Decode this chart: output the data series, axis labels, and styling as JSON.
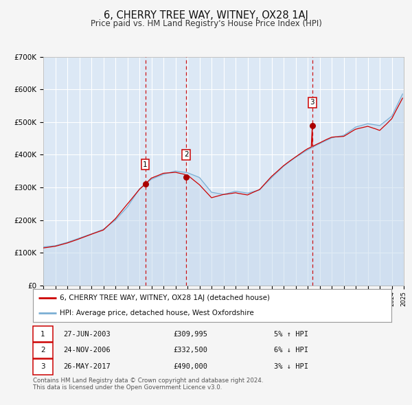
{
  "title": "6, CHERRY TREE WAY, WITNEY, OX28 1AJ",
  "subtitle": "Price paid vs. HM Land Registry's House Price Index (HPI)",
  "title_fontsize": 10.5,
  "subtitle_fontsize": 8.5,
  "background_color": "#f5f5f5",
  "plot_bg_color": "#dce8f5",
  "grid_color": "#ffffff",
  "ylim": [
    0,
    700000
  ],
  "yticks": [
    0,
    100000,
    200000,
    300000,
    400000,
    500000,
    600000,
    700000
  ],
  "ytick_labels": [
    "£0",
    "£100K",
    "£200K",
    "£300K",
    "£400K",
    "£500K",
    "£600K",
    "£700K"
  ],
  "year_start": 1995,
  "year_end": 2025,
  "hpi_color": "#7bafd4",
  "hpi_fill_color": "#c5d8ed",
  "price_color": "#cc0000",
  "sale_marker_color": "#aa0000",
  "vline_color": "#cc0000",
  "sale_dates_year": [
    2003.49,
    2006.9,
    2017.39
  ],
  "sale_prices": [
    309995,
    332500,
    490000
  ],
  "sale_labels": [
    "1",
    "2",
    "3"
  ],
  "legend_price_label": "6, CHERRY TREE WAY, WITNEY, OX28 1AJ (detached house)",
  "legend_hpi_label": "HPI: Average price, detached house, West Oxfordshire",
  "table_rows": [
    {
      "num": "1",
      "date": "27-JUN-2003",
      "price": "£309,995",
      "hpi": "5% ↑ HPI"
    },
    {
      "num": "2",
      "date": "24-NOV-2006",
      "price": "£332,500",
      "hpi": "6% ↓ HPI"
    },
    {
      "num": "3",
      "date": "26-MAY-2017",
      "price": "£490,000",
      "hpi": "3% ↓ HPI"
    }
  ],
  "footnote": "Contains HM Land Registry data © Crown copyright and database right 2024.\nThis data is licensed under the Open Government Licence v3.0.",
  "hpi_data_years": [
    1995.0,
    1995.1,
    1995.2,
    1995.3,
    1995.4,
    1995.5,
    1995.6,
    1995.7,
    1995.8,
    1995.9,
    1996.0,
    1996.1,
    1996.2,
    1996.3,
    1996.4,
    1996.5,
    1996.6,
    1996.7,
    1996.8,
    1996.9,
    1997.0,
    1997.1,
    1997.2,
    1997.3,
    1997.4,
    1997.5,
    1997.6,
    1997.7,
    1997.8,
    1997.9,
    1998.0,
    1998.1,
    1998.2,
    1998.3,
    1998.4,
    1998.5,
    1998.6,
    1998.7,
    1998.8,
    1998.9,
    1999.0,
    1999.1,
    1999.2,
    1999.3,
    1999.4,
    1999.5,
    1999.6,
    1999.7,
    1999.8,
    1999.9,
    2000.0,
    2000.1,
    2000.2,
    2000.3,
    2000.4,
    2000.5,
    2000.6,
    2000.7,
    2000.8,
    2000.9,
    2001.0,
    2001.1,
    2001.2,
    2001.3,
    2001.4,
    2001.5,
    2001.6,
    2001.7,
    2001.8,
    2001.9,
    2002.0,
    2002.1,
    2002.2,
    2002.3,
    2002.4,
    2002.5,
    2002.6,
    2002.7,
    2002.8,
    2002.9,
    2003.0,
    2003.1,
    2003.2,
    2003.3,
    2003.4,
    2003.5,
    2003.6,
    2003.7,
    2003.8,
    2003.9,
    2004.0,
    2004.1,
    2004.2,
    2004.3,
    2004.4,
    2004.5,
    2004.6,
    2004.7,
    2004.8,
    2004.9,
    2005.0,
    2005.1,
    2005.2,
    2005.3,
    2005.4,
    2005.5,
    2005.6,
    2005.7,
    2005.8,
    2005.9,
    2006.0,
    2006.1,
    2006.2,
    2006.3,
    2006.4,
    2006.5,
    2006.6,
    2006.7,
    2006.8,
    2006.9,
    2007.0,
    2007.1,
    2007.2,
    2007.3,
    2007.4,
    2007.5,
    2007.6,
    2007.7,
    2007.8,
    2007.9,
    2008.0,
    2008.1,
    2008.2,
    2008.3,
    2008.4,
    2008.5,
    2008.6,
    2008.7,
    2008.8,
    2008.9,
    2009.0,
    2009.1,
    2009.2,
    2009.3,
    2009.4,
    2009.5,
    2009.6,
    2009.7,
    2009.8,
    2009.9,
    2010.0,
    2010.1,
    2010.2,
    2010.3,
    2010.4,
    2010.5,
    2010.6,
    2010.7,
    2010.8,
    2010.9,
    2011.0,
    2011.1,
    2011.2,
    2011.3,
    2011.4,
    2011.5,
    2011.6,
    2011.7,
    2011.8,
    2011.9,
    2012.0,
    2012.1,
    2012.2,
    2012.3,
    2012.4,
    2012.5,
    2012.6,
    2012.7,
    2012.8,
    2012.9,
    2013.0,
    2013.1,
    2013.2,
    2013.3,
    2013.4,
    2013.5,
    2013.6,
    2013.7,
    2013.8,
    2013.9,
    2014.0,
    2014.1,
    2014.2,
    2014.3,
    2014.4,
    2014.5,
    2014.6,
    2014.7,
    2014.8,
    2014.9,
    2015.0,
    2015.1,
    2015.2,
    2015.3,
    2015.4,
    2015.5,
    2015.6,
    2015.7,
    2015.8,
    2015.9,
    2016.0,
    2016.1,
    2016.2,
    2016.3,
    2016.4,
    2016.5,
    2016.6,
    2016.7,
    2016.8,
    2016.9,
    2017.0,
    2017.1,
    2017.2,
    2017.3,
    2017.4,
    2017.5,
    2017.6,
    2017.7,
    2017.8,
    2017.9,
    2018.0,
    2018.1,
    2018.2,
    2018.3,
    2018.4,
    2018.5,
    2018.6,
    2018.7,
    2018.8,
    2018.9,
    2019.0,
    2019.1,
    2019.2,
    2019.3,
    2019.4,
    2019.5,
    2019.6,
    2019.7,
    2019.8,
    2019.9,
    2020.0,
    2020.1,
    2020.2,
    2020.3,
    2020.4,
    2020.5,
    2020.6,
    2020.7,
    2020.8,
    2020.9,
    2021.0,
    2021.1,
    2021.2,
    2021.3,
    2021.4,
    2021.5,
    2021.6,
    2021.7,
    2021.8,
    2021.9,
    2022.0,
    2022.1,
    2022.2,
    2022.3,
    2022.4,
    2022.5,
    2022.6,
    2022.7,
    2022.8,
    2022.9,
    2023.0,
    2023.1,
    2023.2,
    2023.3,
    2023.4,
    2023.5,
    2023.6,
    2023.7,
    2023.8,
    2023.9,
    2024.0,
    2024.1,
    2024.2,
    2024.3,
    2024.4,
    2024.5,
    2024.6,
    2024.7,
    2024.8,
    2024.9
  ],
  "price_data_years": [
    1995.0,
    1995.1,
    1995.2,
    1995.3,
    1995.4,
    1995.5,
    1995.6,
    1995.7,
    1995.8,
    1995.9,
    1996.0,
    1996.1,
    1996.2,
    1996.3,
    1996.4,
    1996.5,
    1996.6,
    1996.7,
    1996.8,
    1996.9,
    1997.0,
    1997.1,
    1997.2,
    1997.3,
    1997.4,
    1997.5,
    1997.6,
    1997.7,
    1997.8,
    1997.9,
    1998.0,
    1998.1,
    1998.2,
    1998.3,
    1998.4,
    1998.5,
    1998.6,
    1998.7,
    1998.8,
    1998.9,
    1999.0,
    1999.1,
    1999.2,
    1999.3,
    1999.4,
    1999.5,
    1999.6,
    1999.7,
    1999.8,
    1999.9,
    2000.0,
    2000.1,
    2000.2,
    2000.3,
    2000.4,
    2000.5,
    2000.6,
    2000.7,
    2000.8,
    2000.9,
    2001.0,
    2001.1,
    2001.2,
    2001.3,
    2001.4,
    2001.5,
    2001.6,
    2001.7,
    2001.8,
    2001.9,
    2002.0,
    2002.1,
    2002.2,
    2002.3,
    2002.4,
    2002.5,
    2002.6,
    2002.7,
    2002.8,
    2002.9,
    2003.0,
    2003.1,
    2003.2,
    2003.3,
    2003.4,
    2003.49,
    2003.5,
    2003.6,
    2003.7,
    2003.8,
    2003.9,
    2004.0,
    2004.1,
    2004.2,
    2004.3,
    2004.4,
    2004.5,
    2004.6,
    2004.7,
    2004.8,
    2004.9,
    2005.0,
    2005.1,
    2005.2,
    2005.3,
    2005.4,
    2005.5,
    2005.6,
    2005.7,
    2005.8,
    2005.9,
    2006.0,
    2006.1,
    2006.2,
    2006.3,
    2006.4,
    2006.5,
    2006.6,
    2006.7,
    2006.8,
    2006.9,
    2007.0,
    2007.1,
    2007.2,
    2007.3,
    2007.4,
    2007.5,
    2007.6,
    2007.7,
    2007.8,
    2007.9,
    2008.0,
    2008.1,
    2008.2,
    2008.3,
    2008.4,
    2008.5,
    2008.6,
    2008.7,
    2008.8,
    2008.9,
    2009.0,
    2009.1,
    2009.2,
    2009.3,
    2009.4,
    2009.5,
    2009.6,
    2009.7,
    2009.8,
    2009.9,
    2010.0,
    2010.1,
    2010.2,
    2010.3,
    2010.4,
    2010.5,
    2010.6,
    2010.7,
    2010.8,
    2010.9,
    2011.0,
    2011.1,
    2011.2,
    2011.3,
    2011.4,
    2011.5,
    2011.6,
    2011.7,
    2011.8,
    2011.9,
    2012.0,
    2012.1,
    2012.2,
    2012.3,
    2012.4,
    2012.5,
    2012.6,
    2012.7,
    2012.8,
    2012.9,
    2013.0,
    2013.1,
    2013.2,
    2013.3,
    2013.4,
    2013.5,
    2013.6,
    2013.7,
    2013.8,
    2013.9,
    2014.0,
    2014.1,
    2014.2,
    2014.3,
    2014.4,
    2014.5,
    2014.6,
    2014.7,
    2014.8,
    2014.9,
    2015.0,
    2015.1,
    2015.2,
    2015.3,
    2015.4,
    2015.5,
    2015.6,
    2015.7,
    2015.8,
    2015.9,
    2016.0,
    2016.1,
    2016.2,
    2016.3,
    2016.4,
    2016.5,
    2016.6,
    2016.7,
    2016.8,
    2016.9,
    2017.0,
    2017.1,
    2017.2,
    2017.3,
    2017.39,
    2017.4,
    2017.5,
    2017.6,
    2017.7,
    2017.8,
    2017.9,
    2018.0,
    2018.1,
    2018.2,
    2018.3,
    2018.4,
    2018.5,
    2018.6,
    2018.7,
    2018.8,
    2018.9,
    2019.0,
    2019.1,
    2019.2,
    2019.3,
    2019.4,
    2019.5,
    2019.6,
    2019.7,
    2019.8,
    2019.9,
    2020.0,
    2020.1,
    2020.2,
    2020.3,
    2020.4,
    2020.5,
    2020.6,
    2020.7,
    2020.8,
    2020.9,
    2021.0,
    2021.1,
    2021.2,
    2021.3,
    2021.4,
    2021.5,
    2021.6,
    2021.7,
    2021.8,
    2021.9,
    2022.0,
    2022.1,
    2022.2,
    2022.3,
    2022.4,
    2022.5,
    2022.6,
    2022.7,
    2022.8,
    2022.9,
    2023.0,
    2023.1,
    2023.2,
    2023.3,
    2023.4,
    2023.5,
    2023.6,
    2023.7,
    2023.8,
    2023.9,
    2024.0,
    2024.1,
    2024.2,
    2024.3,
    2024.4,
    2024.5,
    2024.6,
    2024.7,
    2024.8,
    2024.9
  ]
}
